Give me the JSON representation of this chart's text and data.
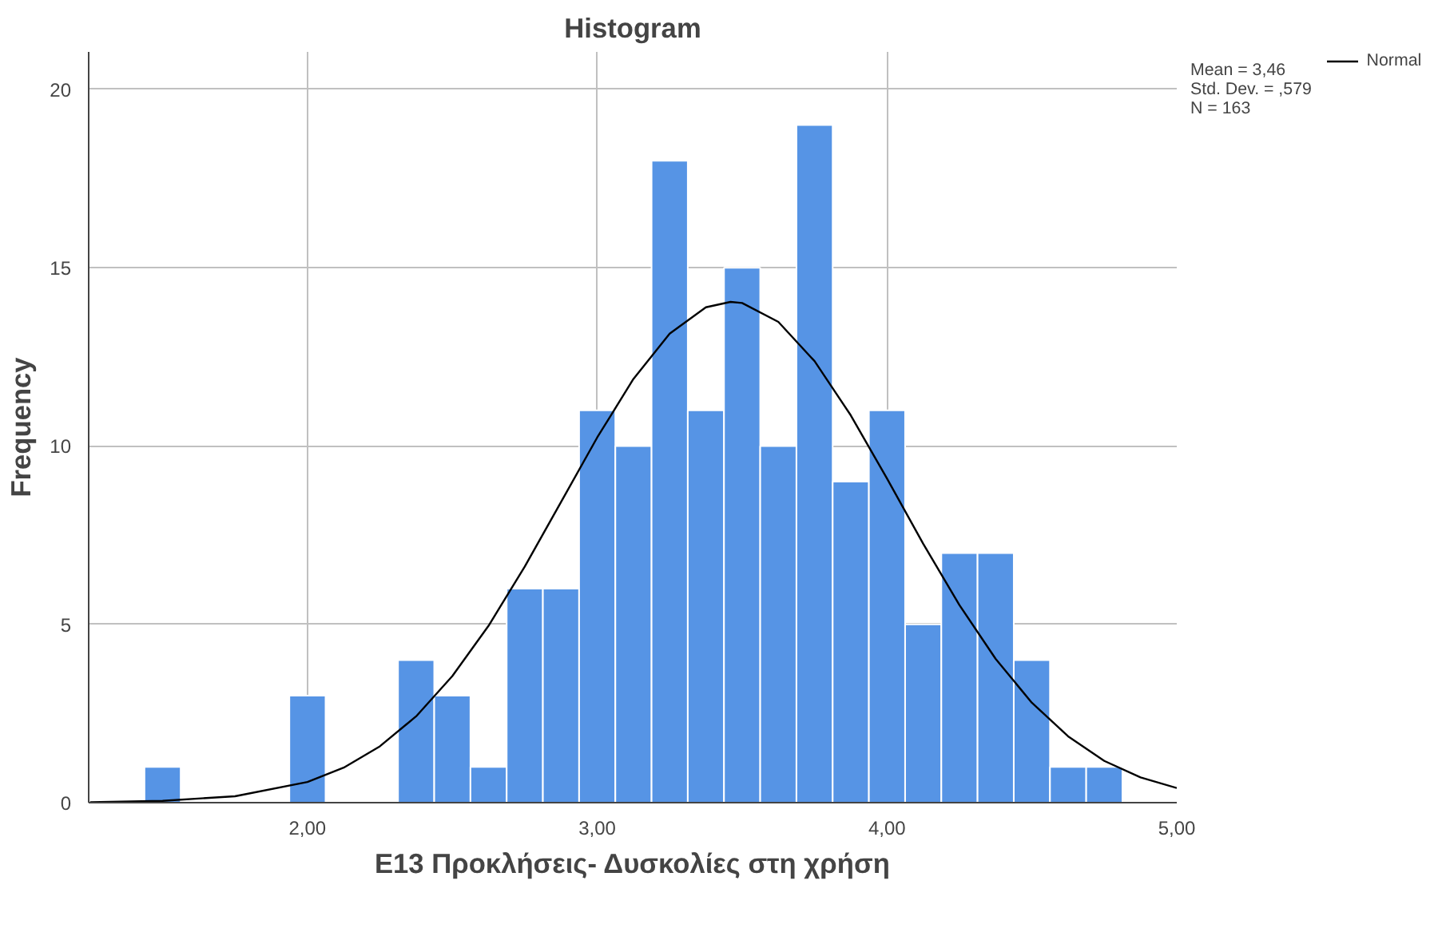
{
  "chart_data": {
    "type": "histogram",
    "title": "Histogram",
    "xlabel": "E13 Προκλήσεις- Δυσκολίες στη χρήση",
    "ylabel": "Frequency",
    "bins": [
      1.4375,
      1.5625,
      1.6875,
      1.8125,
      1.9375,
      2.0625,
      2.1875,
      2.3125,
      2.4375,
      2.5625,
      2.6875,
      2.8125,
      2.9375,
      3.0625,
      3.1875,
      3.3125,
      3.4375,
      3.5625,
      3.6875,
      3.8125,
      3.9375,
      4.0625,
      4.1875,
      4.3125,
      4.4375,
      4.5625,
      4.6875,
      4.8125
    ],
    "series": [
      {
        "color": "#5694e5",
        "values": [
          1,
          0,
          0,
          0,
          3,
          0,
          0,
          4,
          3,
          1,
          6,
          6,
          11,
          10,
          18,
          11,
          15,
          10,
          19,
          9,
          11,
          5,
          7,
          7,
          4,
          1,
          1
        ]
      },
      {
        "type": "line",
        "name": "Normal",
        "color": "#000000",
        "x": [
          1.25,
          1.5,
          1.75,
          2.0,
          2.125,
          2.25,
          2.375,
          2.5,
          2.625,
          2.75,
          2.875,
          3.0,
          3.125,
          3.25,
          3.375,
          3.46,
          3.5,
          3.625,
          3.75,
          3.875,
          4.0,
          4.125,
          4.25,
          4.375,
          4.5,
          4.625,
          4.75,
          4.875,
          5.0
        ],
        "values": [
          0.01,
          0.05,
          0.18,
          0.58,
          0.98,
          1.58,
          2.42,
          3.55,
          4.96,
          6.62,
          8.43,
          10.24,
          11.88,
          13.15,
          13.89,
          14.04,
          14.01,
          13.48,
          12.38,
          10.86,
          9.09,
          7.26,
          5.54,
          4.03,
          2.8,
          1.86,
          1.17,
          0.71,
          0.41
        ]
      }
    ],
    "xlim": [
      1.245,
      5.0
    ],
    "ylim": [
      0,
      21.05
    ],
    "xticks": [
      {
        "value": 2,
        "label": "2,00"
      },
      {
        "value": 3,
        "label": "3,00"
      },
      {
        "value": 4,
        "label": "4,00"
      },
      {
        "value": 5,
        "label": "5,00"
      }
    ],
    "yticks": [
      0,
      5,
      10,
      15,
      20
    ],
    "grid": true,
    "legend": "top right",
    "annotations": [
      "Mean = 3,46",
      "Std. Dev. = ,579",
      "N = 163"
    ]
  }
}
